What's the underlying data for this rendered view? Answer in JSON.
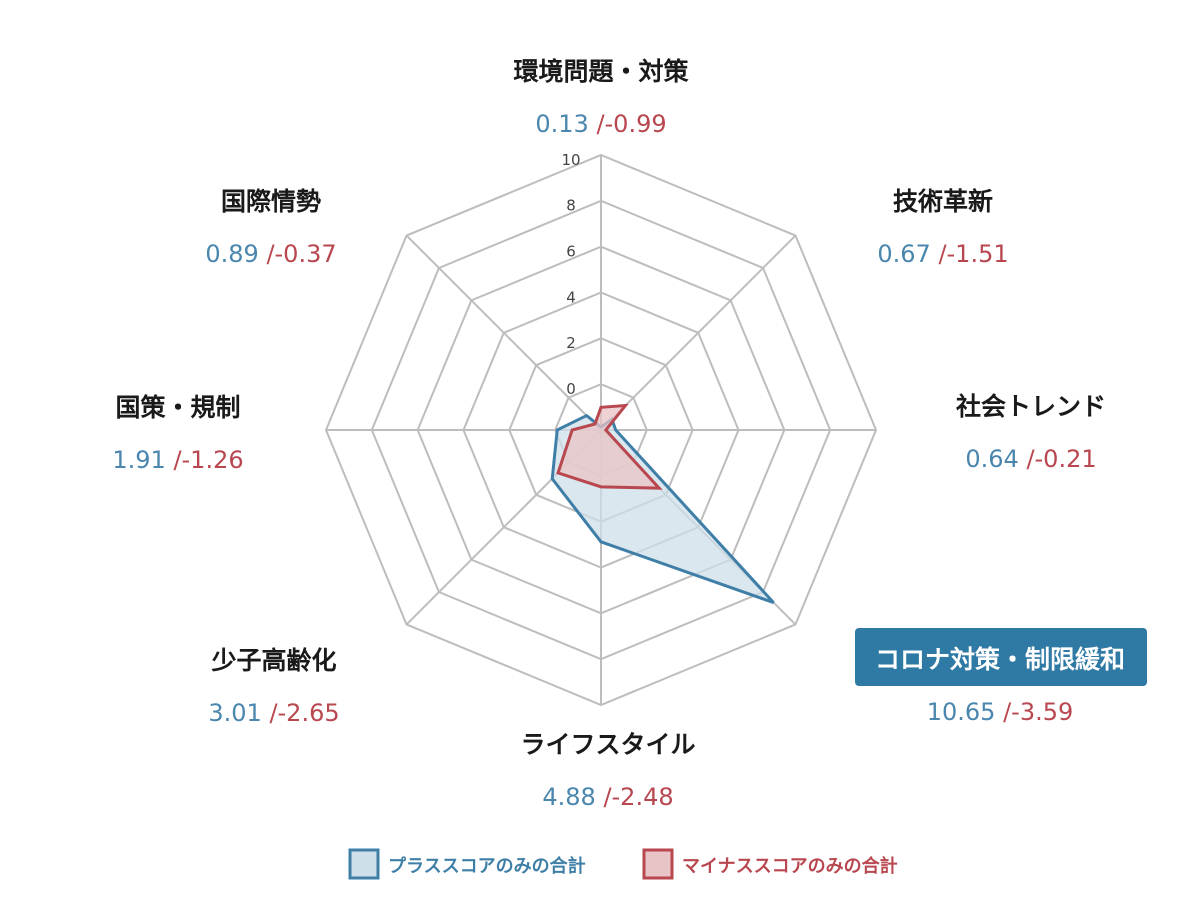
{
  "chart_data": {
    "type": "radar",
    "title": "",
    "categories": [
      "環境問題・対策",
      "技術革新",
      "社会トレンド",
      "コロナ対策・制限緩和",
      "ライフスタイル",
      "少子高齢化",
      "国策・規制",
      "国際情勢"
    ],
    "highlighted_category": "コロナ対策・制限緩和",
    "series": [
      {
        "name": "プラススコアのみの合計",
        "values": [
          0.13,
          0.67,
          0.64,
          10.65,
          4.88,
          3.01,
          1.91,
          0.89
        ],
        "labels": [
          "0.13",
          "0.67",
          "0.64",
          "10.65",
          "4.88",
          "3.01",
          "1.91",
          "0.89"
        ],
        "color": "#3f7fa7",
        "fill": "#cfdfea"
      },
      {
        "name": "マイナススコアのみの合計",
        "values": [
          -0.99,
          -1.51,
          -0.21,
          -3.59,
          -2.48,
          -2.65,
          -1.26,
          -0.37
        ],
        "labels": [
          "/-0.99",
          "/-1.51",
          "/-0.21",
          "/-3.59",
          "/-2.48",
          "/-2.65",
          "/-1.26",
          "/-0.37"
        ],
        "color": "#b8474f",
        "fill": "#e9c4c6"
      }
    ],
    "r_ticks": [
      "0",
      "2",
      "4",
      "6",
      "8",
      "10"
    ],
    "r_range": [
      0,
      12
    ],
    "grid": true,
    "legend_position": "bottom"
  },
  "colors": {
    "grid": "#bdbdbd",
    "highlight_bg": "#2f79a5",
    "plus": "#4a86ad",
    "minus": "#b8474f"
  }
}
